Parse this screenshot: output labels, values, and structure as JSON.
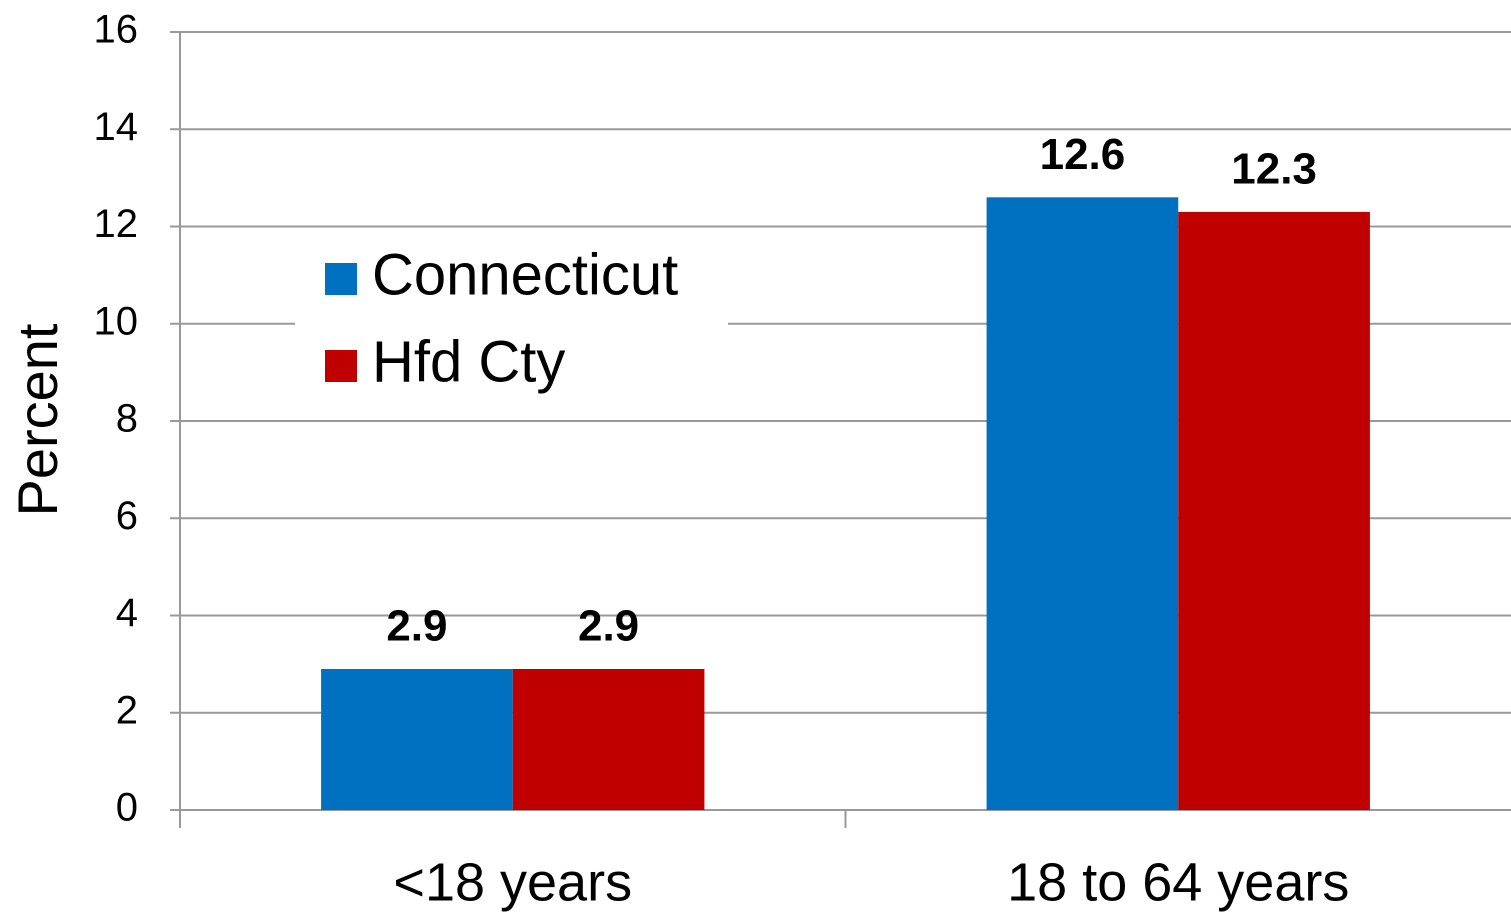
{
  "chart_data": {
    "type": "bar",
    "y_label": "Percent",
    "categories": [
      "<18 years",
      "18 to 64 years"
    ],
    "series": [
      {
        "name": "Connecticut",
        "color": "#0070c0",
        "values": [
          2.9,
          12.6
        ]
      },
      {
        "name": "Hfd Cty",
        "color": "#c00000",
        "values": [
          2.9,
          12.3
        ]
      }
    ],
    "ylim": [
      0,
      16
    ],
    "yticks": [
      0,
      2,
      4,
      6,
      8,
      10,
      12,
      14,
      16
    ],
    "grid": true
  }
}
